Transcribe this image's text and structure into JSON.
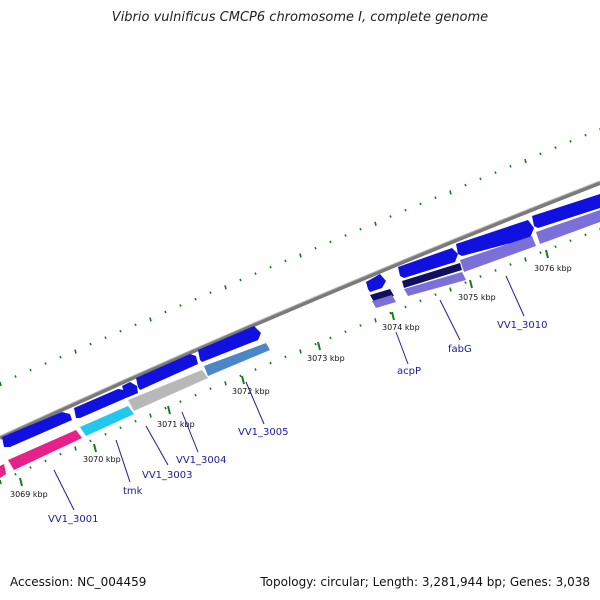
{
  "title": "Vibrio vulnificus CMCP6 chromosome I, complete genome",
  "accession": "Accession: NC_004459",
  "summary": "Topology: circular; Length: 3,281,944 bp; Genes: 3,038",
  "colors": {
    "backbone": "#7a7a7a",
    "cds_forward": "#1010e0",
    "tick_mark": "#1a7a1a",
    "cog_pink": "#e8208a",
    "cog_cyan": "#20c8f0",
    "cog_grey": "#b8b8b8",
    "cog_steel": "#4a86c8",
    "cog_purple": "#7a70d8",
    "cog_navy": "#101060",
    "label": "#1a1aa0"
  },
  "ticks": [
    "3069 kbp",
    "3070 kbp",
    "3071 kbp",
    "3072 kbp",
    "3073 kbp",
    "3074 kbp",
    "3075 kbp",
    "3076 kbp"
  ],
  "gene_labels": [
    "VV1_3001",
    "tmk",
    "VV1_3003",
    "VV1_3004",
    "VV1_3005",
    "acpP",
    "fabG",
    "VV1_3010"
  ]
}
